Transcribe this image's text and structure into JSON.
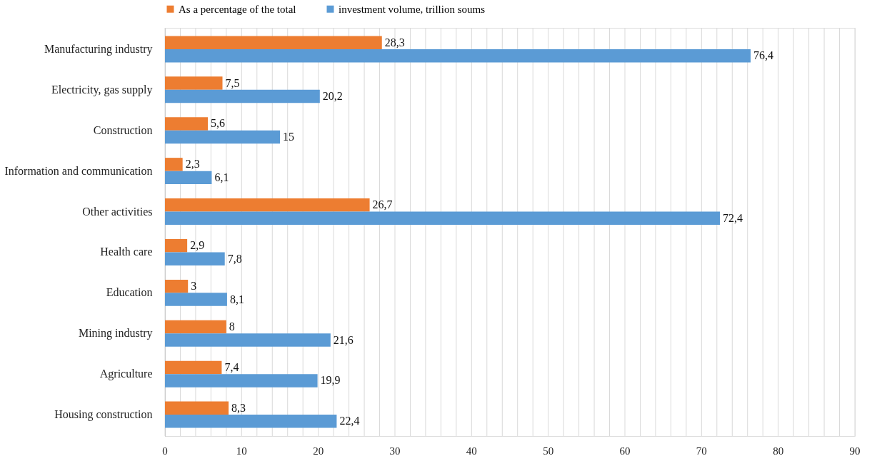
{
  "chart_data": {
    "type": "bar",
    "orientation": "horizontal",
    "categories": [
      "Manufacturing industry",
      "Electricity, gas supply",
      "Construction",
      "Information and communication",
      "Other activities",
      "Health care",
      "Education",
      "Mining industry",
      "Agriculture",
      "Housing construction"
    ],
    "series": [
      {
        "name": "As a percentage of the total",
        "color": "#ed7d31",
        "values": [
          28.3,
          7.5,
          5.6,
          2.3,
          26.7,
          2.9,
          3,
          8,
          7.4,
          8.3
        ],
        "value_labels": [
          "28,3",
          "7,5",
          "5,6",
          "2,3",
          "26,7",
          "2,9",
          "3",
          "8",
          "7,4",
          "8,3"
        ]
      },
      {
        "name": "investment volume, trillion soums",
        "color": "#5b9bd5",
        "values": [
          76.4,
          20.2,
          15,
          6.1,
          72.4,
          7.8,
          8.1,
          21.6,
          19.9,
          22.4
        ],
        "value_labels": [
          "76,4",
          "20,2",
          "15",
          "6,1",
          "72,4",
          "7,8",
          "8,1",
          "21,6",
          "19,9",
          "22,4"
        ]
      }
    ],
    "xlim": [
      0,
      90
    ],
    "xticks": [
      0,
      {
        "value": 2,
        "label": null
      },
      {
        "value": 4,
        "label": null
      },
      {
        "value": 6,
        "label": null
      },
      {
        "value": 8,
        "label": null
      },
      10,
      {
        "value": 12,
        "label": null
      },
      {
        "value": 14,
        "label": null
      },
      {
        "value": 16,
        "label": null
      },
      {
        "value": 18,
        "label": null
      },
      20,
      {
        "value": 22,
        "label": null
      },
      {
        "value": 24,
        "label": null
      },
      {
        "value": 26,
        "label": null
      },
      {
        "value": 28,
        "label": null
      },
      30,
      {
        "value": 32,
        "label": null
      },
      {
        "value": 34,
        "label": null
      },
      {
        "value": 36,
        "label": null
      },
      {
        "value": 38,
        "label": null
      },
      40,
      {
        "value": 42,
        "label": null
      },
      {
        "value": 44,
        "label": null
      },
      {
        "value": 46,
        "label": null
      },
      {
        "value": 48,
        "label": null
      },
      50,
      {
        "value": 52,
        "label": null
      },
      {
        "value": 54,
        "label": null
      },
      {
        "value": 56,
        "label": null
      },
      {
        "value": 58,
        "label": null
      },
      60,
      {
        "value": 62,
        "label": null
      },
      {
        "value": 64,
        "label": null
      },
      {
        "value": 66,
        "label": null
      },
      {
        "value": 68,
        "label": null
      },
      70,
      {
        "value": 72,
        "label": null
      },
      {
        "value": 74,
        "label": null
      },
      {
        "value": 76,
        "label": null
      },
      {
        "value": 78,
        "label": null
      },
      80,
      {
        "value": 82,
        "label": null
      },
      {
        "value": 84,
        "label": null
      },
      {
        "value": 86,
        "label": null
      },
      {
        "value": 88,
        "label": null
      },
      90
    ],
    "grid": "x",
    "legend": "top"
  }
}
